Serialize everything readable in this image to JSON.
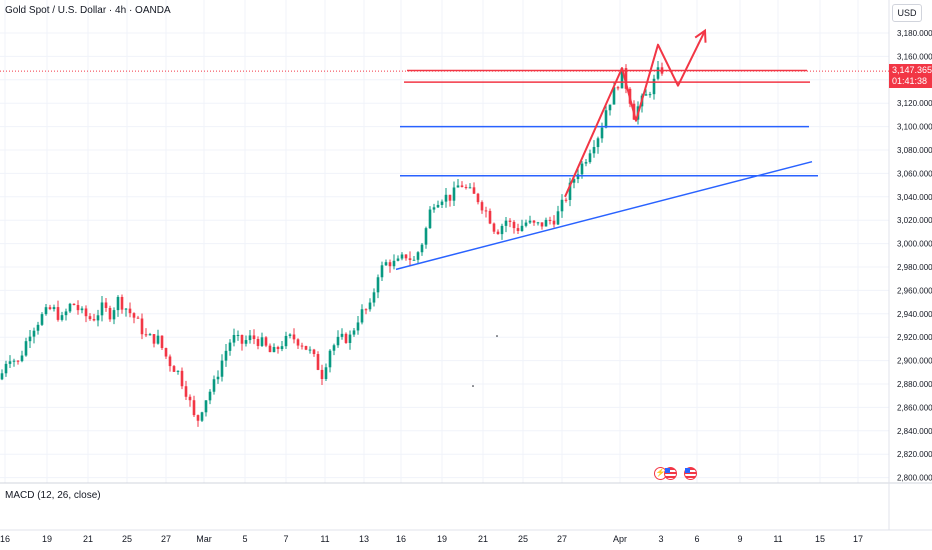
{
  "header": {
    "title": "Gold Spot / U.S. Dollar · 4h · OANDA",
    "currency_button": "USD"
  },
  "indicator": {
    "label": "MACD (12, 26, close)"
  },
  "last_price": {
    "value": "3,147.365",
    "countdown": "01:41:38",
    "color": "#f23645"
  },
  "colors": {
    "up": "#089981",
    "down": "#f23645",
    "trendline_blue": "#2962ff",
    "drawing_red": "#f23645",
    "grid": "#f0f3fa",
    "axis_text": "#131722"
  },
  "icons": {
    "events": [
      "lightning-event-icon",
      "us-flag-event-icon",
      "us-flag-event-icon"
    ]
  },
  "chart_data": {
    "type": "candlestick",
    "title": "Gold Spot / U.S. Dollar · 4h · OANDA",
    "x_tick_labels": [
      "16",
      "19",
      "21",
      "25",
      "27",
      "Mar",
      "5",
      "7",
      "11",
      "13",
      "16",
      "19",
      "21",
      "25",
      "27",
      "Apr",
      "3",
      "6",
      "9",
      "11",
      "15",
      "17"
    ],
    "y_tick_labels": [
      "3,180.000",
      "3,160.000",
      "3,140.000",
      "3,120.000",
      "3,100.000",
      "3,080.000",
      "3,060.000",
      "3,040.000",
      "3,020.000",
      "3,000.000",
      "2,980.000",
      "2,960.000",
      "2,940.000",
      "2,920.000",
      "2,900.000",
      "2,880.000",
      "2,860.000",
      "2,840.000",
      "2,820.000",
      "2,800.000"
    ],
    "ylim": [
      2800,
      3190
    ],
    "grid": true,
    "last_close": 3147.365,
    "price_path": [
      [
        0,
        2884
      ],
      [
        8,
        2905
      ],
      [
        18,
        2898
      ],
      [
        30,
        2925
      ],
      [
        42,
        2938
      ],
      [
        52,
        2945
      ],
      [
        62,
        2935
      ],
      [
        72,
        2950
      ],
      [
        82,
        2940
      ],
      [
        92,
        2935
      ],
      [
        102,
        2945
      ],
      [
        110,
        2940
      ],
      [
        118,
        2952
      ],
      [
        126,
        2945
      ],
      [
        136,
        2935
      ],
      [
        146,
        2920
      ],
      [
        158,
        2918
      ],
      [
        168,
        2900
      ],
      [
        178,
        2890
      ],
      [
        188,
        2870
      ],
      [
        196,
        2845
      ],
      [
        204,
        2865
      ],
      [
        214,
        2880
      ],
      [
        224,
        2905
      ],
      [
        232,
        2920
      ],
      [
        242,
        2915
      ],
      [
        252,
        2920
      ],
      [
        262,
        2915
      ],
      [
        272,
        2905
      ],
      [
        282,
        2915
      ],
      [
        292,
        2920
      ],
      [
        302,
        2915
      ],
      [
        312,
        2905
      ],
      [
        322,
        2888
      ],
      [
        330,
        2910
      ],
      [
        340,
        2918
      ],
      [
        350,
        2920
      ],
      [
        360,
        2940
      ],
      [
        370,
        2945
      ],
      [
        378,
        2975
      ],
      [
        388,
        2985
      ],
      [
        396,
        2982
      ],
      [
        406,
        2990
      ],
      [
        414,
        2985
      ],
      [
        424,
        3005
      ],
      [
        432,
        3035
      ],
      [
        442,
        3040
      ],
      [
        452,
        3040
      ],
      [
        460,
        3052
      ],
      [
        468,
        3045
      ],
      [
        478,
        3038
      ],
      [
        488,
        3025
      ],
      [
        496,
        3010
      ],
      [
        506,
        3020
      ],
      [
        516,
        3012
      ],
      [
        526,
        3018
      ],
      [
        536,
        3015
      ],
      [
        546,
        3018
      ],
      [
        556,
        3022
      ],
      [
        566,
        3040
      ],
      [
        576,
        3060
      ],
      [
        584,
        3070
      ],
      [
        592,
        3085
      ],
      [
        600,
        3095
      ],
      [
        606,
        3115
      ],
      [
        614,
        3130
      ],
      [
        622,
        3145
      ],
      [
        628,
        3130
      ],
      [
        634,
        3110
      ],
      [
        640,
        3120
      ],
      [
        648,
        3128
      ],
      [
        655,
        3140
      ],
      [
        660,
        3150
      ],
      [
        664,
        3147
      ]
    ],
    "annotations": {
      "horizontal_levels_red": [
        3148,
        3138
      ],
      "horizontal_levels_blue": [
        3100,
        3058
      ],
      "trendlines_blue": [
        [
          [
            396,
            2978
          ],
          [
            812,
            3070
          ]
        ]
      ],
      "projection_red_path": [
        [
          565,
          3040
        ],
        [
          622,
          3150
        ],
        [
          636,
          3105
        ],
        [
          658,
          3170
        ],
        [
          678,
          3135
        ],
        [
          705,
          3182
        ]
      ]
    }
  }
}
